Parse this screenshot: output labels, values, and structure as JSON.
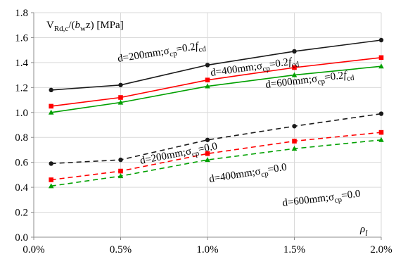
{
  "chart_data": {
    "type": "line",
    "title": "",
    "ylabel_parts": [
      "V",
      "Rd,c",
      "/(",
      "b",
      "w",
      "z) [MPa]"
    ],
    "xlabel_parts": [
      "ρ",
      "l"
    ],
    "x": [
      0.001,
      0.005,
      0.01,
      0.015,
      0.02
    ],
    "xlim": [
      0,
      0.02
    ],
    "ylim": [
      0,
      1.8
    ],
    "xticks": [
      "0.0%",
      "0.5%",
      "1.0%",
      "1.5%",
      "2.0%"
    ],
    "yticks": [
      "0.0",
      "0.2",
      "0.4",
      "0.6",
      "0.8",
      "1.0",
      "1.2",
      "1.4",
      "1.6",
      "1.8"
    ],
    "grid": true,
    "series": [
      {
        "d": "d=200mm",
        "sigma": "0.2",
        "f": "f",
        "fsub": "cd",
        "color": "#1a1a1a",
        "marker": "circle",
        "dashed": false,
        "values": [
          1.18,
          1.22,
          1.38,
          1.49,
          1.58
        ]
      },
      {
        "d": "d=400mm",
        "sigma": "0.2",
        "f": "f",
        "fsub": "cd",
        "color": "#ff0000",
        "marker": "square",
        "dashed": false,
        "values": [
          1.05,
          1.12,
          1.26,
          1.36,
          1.44
        ]
      },
      {
        "d": "d=600mm",
        "sigma": "0.2",
        "f": "f",
        "fsub": "cd",
        "color": "#00a000",
        "marker": "triangle",
        "dashed": false,
        "values": [
          1.0,
          1.08,
          1.21,
          1.3,
          1.37
        ]
      },
      {
        "d": "d=200mm",
        "sigma": "0.0",
        "f": "",
        "fsub": "",
        "color": "#1a1a1a",
        "marker": "circle",
        "dashed": true,
        "values": [
          0.59,
          0.62,
          0.78,
          0.89,
          0.99
        ]
      },
      {
        "d": "d=400mm",
        "sigma": "0.0",
        "f": "",
        "fsub": "",
        "color": "#ff0000",
        "marker": "square",
        "dashed": true,
        "values": [
          0.46,
          0.53,
          0.67,
          0.77,
          0.84
        ]
      },
      {
        "d": "d=600mm",
        "sigma": "0.0",
        "f": "",
        "fsub": "",
        "color": "#00a000",
        "marker": "triangle",
        "dashed": true,
        "values": [
          0.41,
          0.49,
          0.62,
          0.71,
          0.78
        ]
      }
    ],
    "sigma_symbol": "σ",
    "sigma_sub": "cp",
    "equals": "="
  }
}
